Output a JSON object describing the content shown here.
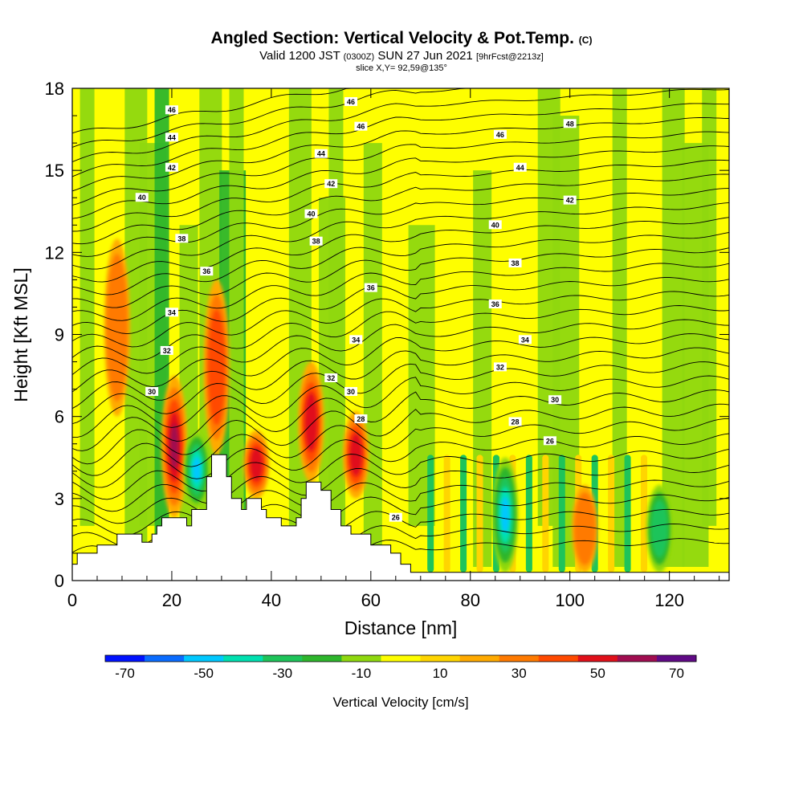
{
  "title": {
    "main": "Angled Section: Vertical Velocity & Pot.Temp.",
    "copyright": "(C)",
    "valid_pre": "Valid 1200 JST",
    "valid_z": "(0300Z)",
    "valid_date": "SUN 27 Jun 2021",
    "valid_fcst": "[9hrFcst@2213z]",
    "slice": "slice X,Y= 92,59@135°"
  },
  "chart_data": {
    "type": "heatmap",
    "xlabel": "Distance [nm]",
    "ylabel": "Height [Kft MSL]",
    "xlim": [
      0,
      132
    ],
    "ylim": [
      0,
      18
    ],
    "x_ticks": [
      "0",
      "20",
      "40",
      "60",
      "80",
      "100",
      "120"
    ],
    "x_tick_values": [
      0,
      20,
      40,
      60,
      80,
      100,
      120
    ],
    "y_ticks": [
      "0",
      "3",
      "6",
      "9",
      "12",
      "15",
      "18"
    ],
    "y_tick_values": [
      0,
      3,
      6,
      9,
      12,
      15,
      18
    ],
    "colorbar": {
      "label": "Vertical Velocity [cm/s]",
      "tick_labels": [
        "-70",
        "-50",
        "-30",
        "-10",
        "10",
        "30",
        "50",
        "70"
      ],
      "tick_values": [
        -70,
        -50,
        -30,
        -10,
        10,
        30,
        50,
        70
      ],
      "range": [
        -75,
        75
      ],
      "colors": [
        "#0012ff",
        "#0a6cff",
        "#00c8ff",
        "#00e0b0",
        "#1ec45a",
        "#2eb62c",
        "#8fd80f",
        "#fefe00",
        "#ffd500",
        "#ffaa00",
        "#ff7a00",
        "#ff4a00",
        "#e0101a",
        "#a00d50",
        "#600a86"
      ]
    },
    "theta_contour_labels": [
      {
        "v": "46",
        "x": 20.0,
        "y": 17.2
      },
      {
        "v": "44",
        "x": 20.0,
        "y": 16.2
      },
      {
        "v": "42",
        "x": 20.0,
        "y": 15.1
      },
      {
        "v": "40",
        "x": 14.0,
        "y": 14.0
      },
      {
        "v": "38",
        "x": 22.0,
        "y": 12.5
      },
      {
        "v": "36",
        "x": 27.0,
        "y": 11.3
      },
      {
        "v": "34",
        "x": 20.0,
        "y": 9.8
      },
      {
        "v": "32",
        "x": 19.0,
        "y": 8.4
      },
      {
        "v": "30",
        "x": 16.0,
        "y": 6.9
      },
      {
        "v": "46",
        "x": 56.0,
        "y": 17.5
      },
      {
        "v": "46",
        "x": 58.0,
        "y": 16.6
      },
      {
        "v": "44",
        "x": 50.0,
        "y": 15.6
      },
      {
        "v": "42",
        "x": 52.0,
        "y": 14.5
      },
      {
        "v": "40",
        "x": 48.0,
        "y": 13.4
      },
      {
        "v": "38",
        "x": 49.0,
        "y": 12.4
      },
      {
        "v": "36",
        "x": 60.0,
        "y": 10.7
      },
      {
        "v": "34",
        "x": 57.0,
        "y": 8.8
      },
      {
        "v": "32",
        "x": 52.0,
        "y": 7.4
      },
      {
        "v": "30",
        "x": 56.0,
        "y": 6.9
      },
      {
        "v": "28",
        "x": 58.0,
        "y": 5.9
      },
      {
        "v": "26",
        "x": 65.0,
        "y": 2.3
      },
      {
        "v": "48",
        "x": 100.0,
        "y": 16.7
      },
      {
        "v": "46",
        "x": 86.0,
        "y": 16.3
      },
      {
        "v": "44",
        "x": 90.0,
        "y": 15.1
      },
      {
        "v": "42",
        "x": 100.0,
        "y": 13.9
      },
      {
        "v": "40",
        "x": 85.0,
        "y": 13.0
      },
      {
        "v": "38",
        "x": 89.0,
        "y": 11.6
      },
      {
        "v": "36",
        "x": 85.0,
        "y": 10.1
      },
      {
        "v": "34",
        "x": 91.0,
        "y": 8.8
      },
      {
        "v": "32",
        "x": 86.0,
        "y": 7.8
      },
      {
        "v": "30",
        "x": 97.0,
        "y": 6.6
      },
      {
        "v": "28",
        "x": 89.0,
        "y": 5.8
      },
      {
        "v": "26",
        "x": 96.0,
        "y": 5.1
      }
    ],
    "terrain": [
      [
        0,
        0.6
      ],
      [
        1,
        0.6
      ],
      [
        1,
        1.0
      ],
      [
        5,
        1.0
      ],
      [
        5,
        1.3
      ],
      [
        9,
        1.3
      ],
      [
        9,
        1.7
      ],
      [
        12,
        1.7
      ],
      [
        14,
        1.7
      ],
      [
        14,
        1.4
      ],
      [
        16,
        1.4
      ],
      [
        16,
        1.7
      ],
      [
        17,
        1.7
      ],
      [
        17,
        2.0
      ],
      [
        18,
        2.0
      ],
      [
        18,
        2.3
      ],
      [
        23,
        2.3
      ],
      [
        23,
        2.0
      ],
      [
        24,
        2.0
      ],
      [
        24,
        2.6
      ],
      [
        27,
        2.6
      ],
      [
        27,
        3.8
      ],
      [
        28,
        3.8
      ],
      [
        28,
        4.6
      ],
      [
        31,
        4.6
      ],
      [
        31,
        3.8
      ],
      [
        32,
        3.8
      ],
      [
        32,
        3.0
      ],
      [
        34,
        3.0
      ],
      [
        34,
        2.6
      ],
      [
        35,
        2.6
      ],
      [
        35,
        3.0
      ],
      [
        38,
        3.0
      ],
      [
        38,
        2.6
      ],
      [
        39,
        2.6
      ],
      [
        39,
        2.3
      ],
      [
        42,
        2.3
      ],
      [
        42,
        2.0
      ],
      [
        45,
        2.0
      ],
      [
        45,
        2.3
      ],
      [
        46,
        2.3
      ],
      [
        46,
        3.0
      ],
      [
        47,
        3.0
      ],
      [
        47,
        3.6
      ],
      [
        50,
        3.6
      ],
      [
        50,
        3.3
      ],
      [
        52,
        3.3
      ],
      [
        52,
        2.6
      ],
      [
        54,
        2.6
      ],
      [
        54,
        2.0
      ],
      [
        56,
        2.0
      ],
      [
        56,
        1.7
      ],
      [
        60,
        1.7
      ],
      [
        60,
        1.3
      ],
      [
        64,
        1.3
      ],
      [
        64,
        1.0
      ],
      [
        66,
        1.0
      ],
      [
        66,
        0.6
      ],
      [
        68,
        0.6
      ],
      [
        68,
        0.3
      ],
      [
        132,
        0.3
      ]
    ],
    "updraft_cores": [
      {
        "x": 9.0,
        "y0": 6.0,
        "y1": 12.5,
        "w": 25
      },
      {
        "x": 20.5,
        "y0": 2.3,
        "y1": 7.5,
        "w": 55
      },
      {
        "x": 29.0,
        "y0": 4.6,
        "y1": 11.0,
        "w": 35
      },
      {
        "x": 37.0,
        "y0": 3.0,
        "y1": 5.5,
        "w": 45
      },
      {
        "x": 48.0,
        "y0": 3.6,
        "y1": 8.0,
        "w": 50
      },
      {
        "x": 57.0,
        "y0": 3.0,
        "y1": 6.2,
        "w": 50
      },
      {
        "x": 103.0,
        "y0": 0.3,
        "y1": 3.5,
        "w": 30
      }
    ],
    "downdraft_cores": [
      {
        "x": 25.0,
        "y0": 2.6,
        "y1": 5.5,
        "w": -60
      },
      {
        "x": 87.0,
        "y0": 0.3,
        "y1": 4.5,
        "w": -55
      },
      {
        "x": 118.0,
        "y0": 0.3,
        "y1": 3.5,
        "w": -35
      }
    ]
  }
}
